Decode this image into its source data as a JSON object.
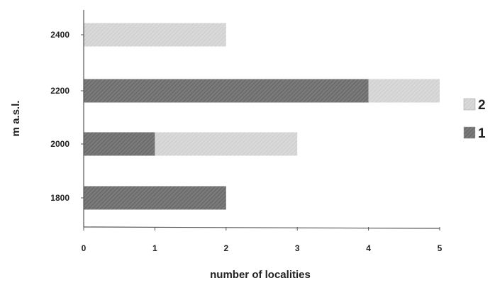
{
  "chart_data": {
    "type": "bar",
    "orientation": "horizontal",
    "stacked": true,
    "categories": [
      "2400",
      "2200",
      "2000",
      "1800"
    ],
    "series": [
      {
        "name": "1",
        "values": [
          0,
          4,
          1,
          2
        ],
        "color": "#7a7a7a"
      },
      {
        "name": "2",
        "values": [
          2,
          1,
          2,
          0
        ],
        "color": "#d6d6d6"
      }
    ],
    "xlabel": "number of localities",
    "ylabel": "m a.s.l.",
    "xlim": [
      0,
      5
    ],
    "xticks": [
      "0",
      "1",
      "2",
      "3",
      "4",
      "5"
    ],
    "grid": false,
    "legend_position": "right",
    "legend_order": [
      "2",
      "1"
    ]
  }
}
